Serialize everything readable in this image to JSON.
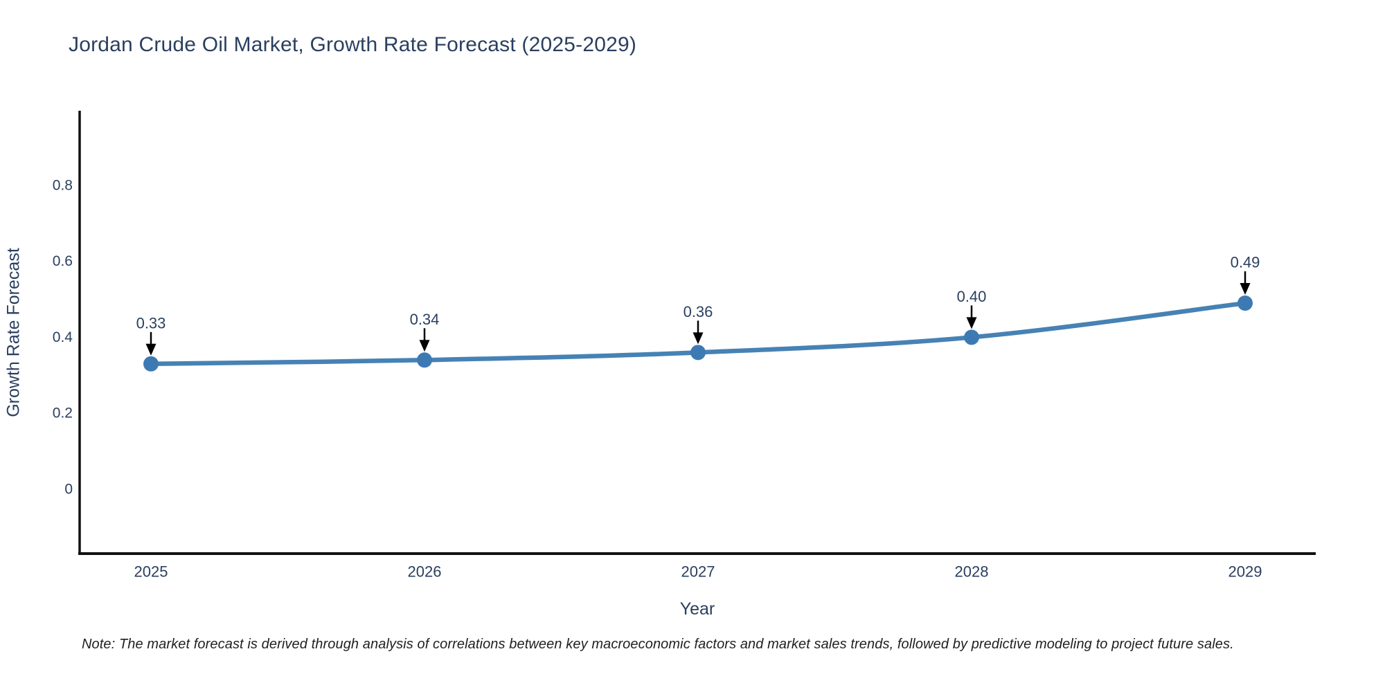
{
  "chart_data": {
    "type": "line",
    "title": "Jordan Crude Oil Market, Growth Rate Forecast (2025-2029)",
    "xlabel": "Year",
    "ylabel": "Growth Rate Forecast",
    "categories": [
      "2025",
      "2026",
      "2027",
      "2028",
      "2029"
    ],
    "series": [
      {
        "name": "Growth Rate Forecast",
        "values": [
          0.33,
          0.34,
          0.36,
          0.4,
          0.49
        ]
      }
    ],
    "point_labels": [
      "0.33",
      "0.34",
      "0.36",
      "0.40",
      "0.49"
    ],
    "yticks": [
      0,
      0.2,
      0.4,
      0.6,
      0.8
    ],
    "ytick_labels": [
      "0",
      "0.2",
      "0.4",
      "0.6",
      "0.8"
    ],
    "ylim": [
      -0.17,
      0.997
    ],
    "grid": false,
    "legend": "none",
    "line_shape": "spline",
    "note": "Note: The market forecast is derived through analysis of correlations between key macroeconomic factors and market sales trends, followed by predictive modeling to project future sales.",
    "colors": {
      "line": "#4682b4",
      "marker": "#3d7ab3",
      "text": "#2a3f5f",
      "axis": "#111111",
      "arrow": "#000000",
      "note_text": "#1f1f1f",
      "background": "#ffffff"
    }
  }
}
